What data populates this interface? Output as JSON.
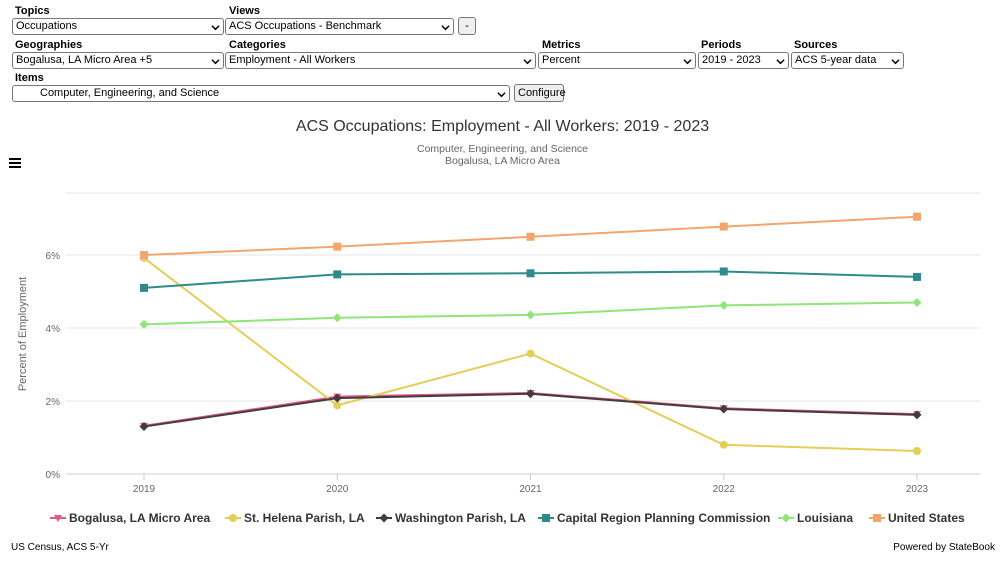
{
  "controls": {
    "topics": {
      "label": "Topics",
      "value": "Occupations"
    },
    "views": {
      "label": "Views",
      "value": "ACS Occupations - Benchmark"
    },
    "minus_label": "-",
    "geographies": {
      "label": "Geographies",
      "value": "Bogalusa, LA Micro Area +5"
    },
    "categories": {
      "label": "Categories",
      "value": "Employment - All Workers"
    },
    "metrics": {
      "label": "Metrics",
      "value": "Percent"
    },
    "periods": {
      "label": "Periods",
      "value": "2019 - 2023"
    },
    "sources": {
      "label": "Sources",
      "value": "ACS 5-year data"
    },
    "items": {
      "label": "Items",
      "value": "Computer, Engineering, and Science"
    },
    "configure_label": "Configure"
  },
  "chart_data": {
    "type": "line",
    "title": "ACS Occupations: Employment - All Workers: 2019 - 2023",
    "subtitles": [
      "Computer, Engineering, and Science",
      "Bogalusa, LA Micro Area"
    ],
    "ylabel": "Percent of Employment",
    "xlabel": "",
    "x": [
      "2019",
      "2020",
      "2021",
      "2022",
      "2023"
    ],
    "ylim": [
      0,
      7.7
    ],
    "yticks": [
      0,
      2,
      4,
      6
    ],
    "ytick_labels": [
      "0%",
      "2%",
      "4%",
      "6%"
    ],
    "grid": true,
    "legend_position": "bottom",
    "series": [
      {
        "name": "Bogalusa, LA Micro Area",
        "color": "#e0597f",
        "marker": "triangle-down",
        "values": [
          1.32,
          2.12,
          2.22,
          1.8,
          1.64
        ]
      },
      {
        "name": "St. Helena Parish, LA",
        "color": "#e3cf57",
        "marker": "circle",
        "values": [
          5.92,
          1.88,
          3.3,
          0.8,
          0.63
        ]
      },
      {
        "name": "Washington Parish, LA",
        "color": "#443a40",
        "marker": "diamond",
        "values": [
          1.3,
          2.08,
          2.2,
          1.78,
          1.62
        ]
      },
      {
        "name": "Capital Region Planning Commission",
        "color": "#2e8b8b",
        "marker": "square",
        "values": [
          5.1,
          5.47,
          5.5,
          5.55,
          5.4
        ]
      },
      {
        "name": "Louisiana",
        "color": "#8fe57a",
        "marker": "diamond",
        "values": [
          4.1,
          4.28,
          4.36,
          4.62,
          4.7
        ]
      },
      {
        "name": "United States",
        "color": "#f2a66e",
        "marker": "square",
        "values": [
          6.0,
          6.23,
          6.5,
          6.78,
          7.05
        ]
      }
    ]
  },
  "footer": {
    "source": "US Census, ACS 5-Yr",
    "powered": "Powered by StateBook"
  },
  "icons": {
    "menu": "hamburger-menu-icon",
    "dropdown": "chevron-down-icon"
  }
}
